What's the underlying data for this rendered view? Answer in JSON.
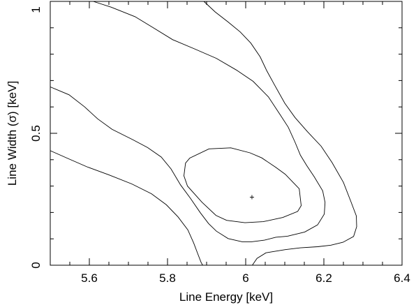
{
  "chart_data": {
    "type": "line",
    "subtype": "confidence-contour",
    "title": "",
    "xlabel": "Line Energy [keV]",
    "ylabel": "Line Width (σ) [keV]",
    "xlim": [
      5.5,
      6.4
    ],
    "ylim": [
      0,
      1
    ],
    "xticks": [
      5.6,
      5.8,
      6,
      6.2,
      6.4
    ],
    "xtick_labels": [
      "5.6",
      "5.8",
      "6",
      "6.2",
      "6.4"
    ],
    "yticks": [
      0,
      0.5,
      1
    ],
    "ytick_labels": [
      "0",
      "0.5",
      "1"
    ],
    "grid": false,
    "best_fit": {
      "x": 6.016,
      "y": 0.258,
      "marker": "+"
    },
    "contours": [
      {
        "closed": true,
        "points": [
          [
            5.846,
            0.387
          ],
          [
            5.857,
            0.406
          ],
          [
            5.906,
            0.441
          ],
          [
            5.962,
            0.445
          ],
          [
            6.011,
            0.426
          ],
          [
            6.041,
            0.407
          ],
          [
            6.077,
            0.371
          ],
          [
            6.101,
            0.345
          ],
          [
            6.137,
            0.29
          ],
          [
            6.142,
            0.226
          ],
          [
            6.133,
            0.204
          ],
          [
            6.095,
            0.181
          ],
          [
            6.045,
            0.165
          ],
          [
            5.998,
            0.161
          ],
          [
            5.951,
            0.17
          ],
          [
            5.924,
            0.189
          ],
          [
            5.888,
            0.239
          ],
          [
            5.851,
            0.3
          ],
          [
            5.842,
            0.339
          ],
          [
            5.846,
            0.387
          ]
        ]
      },
      {
        "closed": false,
        "points": [
          [
            5.5,
            0.676
          ],
          [
            5.548,
            0.646
          ],
          [
            5.588,
            0.6
          ],
          [
            5.621,
            0.555
          ],
          [
            5.658,
            0.515
          ],
          [
            5.711,
            0.476
          ],
          [
            5.749,
            0.446
          ],
          [
            5.784,
            0.41
          ],
          [
            5.809,
            0.365
          ],
          [
            5.833,
            0.305
          ],
          [
            5.859,
            0.253
          ],
          [
            5.884,
            0.199
          ],
          [
            5.905,
            0.158
          ],
          [
            5.925,
            0.129
          ],
          [
            5.955,
            0.101
          ],
          [
            5.991,
            0.089
          ],
          [
            6.015,
            0.089
          ],
          [
            6.048,
            0.095
          ],
          [
            6.077,
            0.106
          ],
          [
            6.107,
            0.11
          ],
          [
            6.151,
            0.126
          ],
          [
            6.184,
            0.153
          ],
          [
            6.201,
            0.194
          ],
          [
            6.203,
            0.238
          ],
          [
            6.197,
            0.282
          ],
          [
            6.175,
            0.336
          ],
          [
            6.156,
            0.378
          ],
          [
            6.14,
            0.417
          ],
          [
            6.126,
            0.467
          ],
          [
            6.109,
            0.523
          ],
          [
            6.088,
            0.571
          ],
          [
            6.058,
            0.638
          ],
          [
            6.019,
            0.697
          ],
          [
            5.976,
            0.74
          ],
          [
            5.925,
            0.784
          ],
          [
            5.869,
            0.82
          ],
          [
            5.813,
            0.855
          ],
          [
            5.765,
            0.899
          ],
          [
            5.717,
            0.942
          ],
          [
            5.656,
            0.978
          ],
          [
            5.61,
            1.0
          ]
        ]
      },
      {
        "closed": false,
        "points": [
          [
            5.5,
            0.434
          ],
          [
            5.549,
            0.402
          ],
          [
            5.594,
            0.373
          ],
          [
            5.649,
            0.343
          ],
          [
            5.709,
            0.308
          ],
          [
            5.759,
            0.271
          ],
          [
            5.797,
            0.229
          ],
          [
            5.827,
            0.183
          ],
          [
            5.852,
            0.134
          ],
          [
            5.867,
            0.084
          ],
          [
            5.877,
            0.045
          ],
          [
            5.886,
            0.01
          ],
          [
            5.89,
            0.0
          ]
        ]
      },
      {
        "closed": false,
        "points": [
          [
            6.017,
            0.0
          ],
          [
            6.029,
            0.026
          ],
          [
            6.052,
            0.047
          ],
          [
            6.101,
            0.059
          ],
          [
            6.14,
            0.066
          ],
          [
            6.184,
            0.07
          ],
          [
            6.218,
            0.076
          ],
          [
            6.249,
            0.087
          ],
          [
            6.276,
            0.109
          ],
          [
            6.284,
            0.146
          ],
          [
            6.283,
            0.187
          ],
          [
            6.269,
            0.242
          ],
          [
            6.25,
            0.314
          ],
          [
            6.221,
            0.389
          ],
          [
            6.193,
            0.451
          ],
          [
            6.158,
            0.506
          ],
          [
            6.126,
            0.56
          ],
          [
            6.1,
            0.614
          ],
          [
            6.074,
            0.683
          ],
          [
            6.054,
            0.737
          ],
          [
            6.037,
            0.79
          ],
          [
            6.013,
            0.842
          ],
          [
            5.986,
            0.884
          ],
          [
            5.955,
            0.922
          ],
          [
            5.922,
            0.96
          ],
          [
            5.893,
            1.0
          ]
        ]
      }
    ]
  }
}
